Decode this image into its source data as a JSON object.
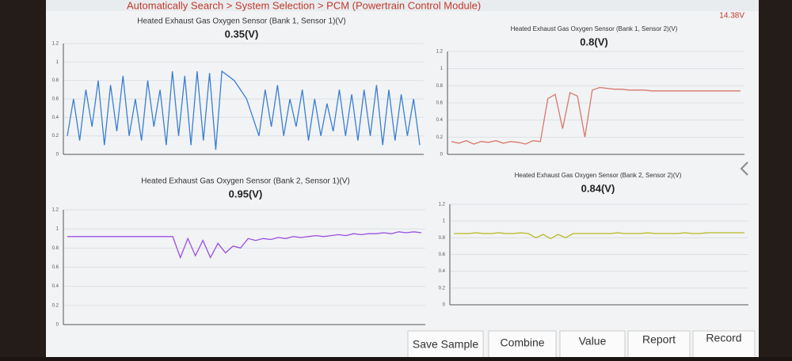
{
  "header": {
    "breadcrumb": "Automatically Search > System Selection > PCM (Powertrain Control Module)",
    "battery": "14.38V"
  },
  "chart_data": [
    {
      "type": "line",
      "title": "Heated Exhaust Gas Oxygen Sensor (Bank 1, Sensor 1)(V)",
      "reading": "0.35(V)",
      "ylim": [
        0,
        1.2
      ],
      "yticks": [
        0,
        0.2,
        0.4,
        0.6,
        0.8,
        1,
        1.2
      ],
      "grid": true,
      "series": [
        {
          "name": "Heated Exhaust Gas Oxygen Sensor (Bank 1, Sensor 1)(V)",
          "color": "#3a7fd0",
          "values": [
            0.2,
            0.6,
            0.15,
            0.7,
            0.3,
            0.8,
            0.1,
            0.75,
            0.25,
            0.85,
            0.2,
            0.6,
            0.15,
            0.8,
            0.3,
            0.7,
            0.1,
            0.9,
            0.2,
            0.85,
            0.1,
            0.9,
            0.15,
            0.88,
            0.05,
            0.9,
            0.85,
            0.8,
            0.7,
            0.6,
            0.4,
            0.2,
            0.7,
            0.3,
            0.75,
            0.2,
            0.6,
            0.3,
            0.7,
            0.15,
            0.6,
            0.2,
            0.55,
            0.25,
            0.7,
            0.2,
            0.65,
            0.15,
            0.7,
            0.2,
            0.75,
            0.1,
            0.7,
            0.15,
            0.65,
            0.2,
            0.6,
            0.1
          ]
        }
      ]
    },
    {
      "type": "line",
      "title": "Heated Exhaust Gas Oxygen Sensor (Bank 1, Sensor 2)(V)",
      "reading": "0.8(V)",
      "ylim": [
        0,
        1.2
      ],
      "yticks": [
        0,
        0.2,
        0.4,
        0.6,
        0.8,
        1,
        1.2
      ],
      "grid": true,
      "series": [
        {
          "name": "Heated Exhaust Gas Oxygen Sensor (Bank 1, Sensor 2)(V)",
          "color": "#d9776a",
          "values": [
            0.15,
            0.13,
            0.16,
            0.12,
            0.15,
            0.14,
            0.16,
            0.13,
            0.15,
            0.14,
            0.12,
            0.16,
            0.15,
            0.65,
            0.7,
            0.3,
            0.72,
            0.68,
            0.2,
            0.75,
            0.78,
            0.77,
            0.76,
            0.76,
            0.75,
            0.75,
            0.75,
            0.74,
            0.74,
            0.74,
            0.74,
            0.74,
            0.74,
            0.74,
            0.74,
            0.74,
            0.74,
            0.74,
            0.74,
            0.74
          ]
        }
      ]
    },
    {
      "type": "line",
      "title": "Heated Exhaust Gas Oxygen Sensor (Bank 2, Sensor 1)(V)",
      "reading": "0.95(V)",
      "ylim": [
        0,
        1.2
      ],
      "yticks": [
        0,
        0.2,
        0.4,
        0.6,
        0.8,
        1,
        1.2
      ],
      "grid": true,
      "series": [
        {
          "name": "Heated Exhaust Gas Oxygen Sensor (Bank 2, Sensor 1)(V)",
          "color": "#9a4fe0",
          "values": [
            0.92,
            0.92,
            0.92,
            0.92,
            0.92,
            0.92,
            0.92,
            0.92,
            0.92,
            0.92,
            0.92,
            0.92,
            0.92,
            0.92,
            0.92,
            0.7,
            0.9,
            0.72,
            0.88,
            0.7,
            0.85,
            0.75,
            0.82,
            0.8,
            0.9,
            0.88,
            0.9,
            0.89,
            0.91,
            0.9,
            0.92,
            0.91,
            0.92,
            0.93,
            0.92,
            0.93,
            0.94,
            0.93,
            0.95,
            0.94,
            0.95,
            0.95,
            0.96,
            0.95,
            0.97,
            0.96,
            0.97,
            0.96
          ]
        }
      ]
    },
    {
      "type": "line",
      "title": "Heated Exhaust Gas Oxygen Sensor (Bank 2, Sensor 2)(V)",
      "reading": "0.84(V)",
      "ylim": [
        0,
        1.2
      ],
      "yticks": [
        0,
        0.2,
        0.4,
        0.6,
        0.8,
        1,
        1.2
      ],
      "grid": true,
      "series": [
        {
          "name": "Heated Exhaust Gas Oxygen Sensor (Bank 2, Sensor 2)(V)",
          "color": "#b8b820",
          "values": [
            0.85,
            0.85,
            0.85,
            0.86,
            0.85,
            0.85,
            0.86,
            0.85,
            0.85,
            0.86,
            0.85,
            0.8,
            0.84,
            0.79,
            0.84,
            0.8,
            0.85,
            0.85,
            0.85,
            0.85,
            0.85,
            0.85,
            0.86,
            0.85,
            0.85,
            0.85,
            0.86,
            0.85,
            0.85,
            0.85,
            0.85,
            0.86,
            0.85,
            0.85,
            0.86,
            0.86,
            0.86,
            0.86,
            0.86,
            0.86
          ]
        }
      ]
    }
  ],
  "buttons": [
    "Save Sample",
    "Combine",
    "Value",
    "Report",
    "Record"
  ]
}
